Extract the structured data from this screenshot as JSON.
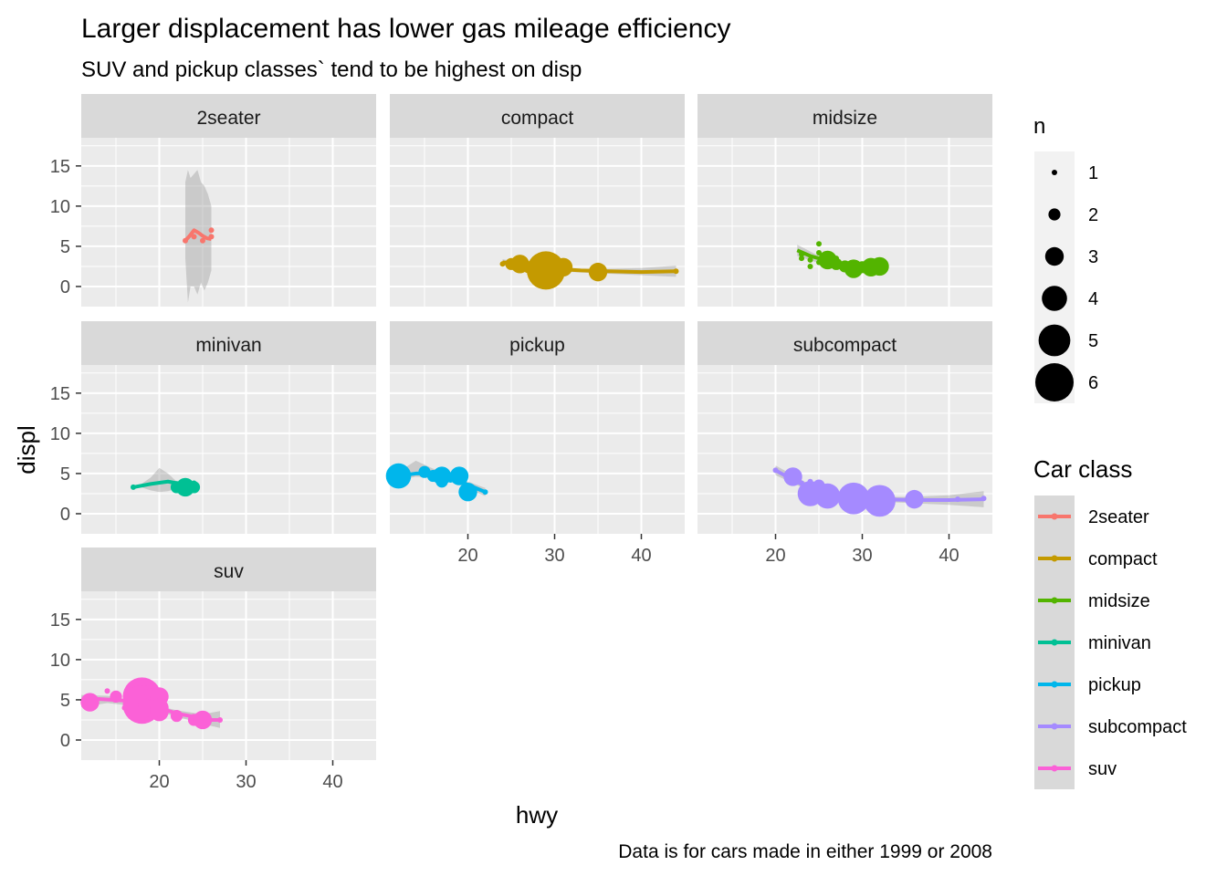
{
  "chart_data": {
    "type": "scatter",
    "title": "Larger displacement has lower gas mileage efficiency",
    "subtitle": "SUV and pickup classes` tend to be highest on disp",
    "caption": "Data is for cars made in either 1999 or 2008",
    "xlabel": "hwy",
    "ylabel": "displ",
    "xlim": [
      11,
      45
    ],
    "ylim": [
      -2.5,
      18.5
    ],
    "x_ticks": [
      20,
      30,
      40
    ],
    "y_ticks": [
      0,
      5,
      10,
      15
    ],
    "grid": true,
    "legend_position": "right",
    "size_legend": {
      "title": "n",
      "labels": [
        "1",
        "2",
        "3",
        "4",
        "5",
        "6"
      ]
    },
    "color_legend": {
      "title": "Car class"
    },
    "panels": [
      {
        "name": "2seater",
        "color": "#F8766D",
        "points": [
          [
            23,
            5.7,
            1
          ],
          [
            24,
            6.2,
            1
          ],
          [
            26,
            6.2,
            1
          ],
          [
            25,
            5.7,
            1
          ],
          [
            26,
            7.0,
            1
          ]
        ],
        "smooth": [
          [
            23,
            5.7
          ],
          [
            23.5,
            6.3
          ],
          [
            24,
            7.0
          ],
          [
            24.5,
            6.7
          ],
          [
            25,
            6.3
          ],
          [
            25.5,
            6.0
          ],
          [
            26,
            5.9
          ]
        ],
        "band": [
          [
            23,
            3.5,
            13.0
          ],
          [
            23.3,
            -2.0,
            14.5
          ],
          [
            23.6,
            0.0,
            13.5
          ],
          [
            24,
            0.0,
            14.0
          ],
          [
            24.4,
            -1.0,
            14.5
          ],
          [
            24.8,
            0.5,
            13.0
          ],
          [
            25.2,
            -0.5,
            12.5
          ],
          [
            25.6,
            0.5,
            11.5
          ],
          [
            26,
            2.0,
            10.0
          ]
        ]
      },
      {
        "name": "compact",
        "color": "#C49A00",
        "points": [
          [
            24,
            2.8,
            1
          ],
          [
            25,
            2.8,
            2
          ],
          [
            26,
            2.8,
            3
          ],
          [
            27,
            2.4,
            2
          ],
          [
            28,
            2.2,
            2
          ],
          [
            29,
            2.0,
            6
          ],
          [
            30,
            2.2,
            2
          ],
          [
            31,
            2.4,
            3
          ],
          [
            35,
            1.8,
            3
          ],
          [
            44,
            1.9,
            1
          ]
        ],
        "smooth": [
          [
            24,
            3.0
          ],
          [
            26,
            2.8
          ],
          [
            28,
            2.4
          ],
          [
            30,
            2.2
          ],
          [
            33,
            2.0
          ],
          [
            36,
            1.9
          ],
          [
            40,
            1.8
          ],
          [
            44,
            1.9
          ]
        ],
        "band": [
          [
            24,
            3.4,
            2.6
          ],
          [
            28,
            2.6,
            2.2
          ],
          [
            32,
            2.2,
            1.8
          ],
          [
            36,
            2.2,
            1.6
          ],
          [
            40,
            2.3,
            1.4
          ],
          [
            44,
            2.6,
            1.2
          ]
        ]
      },
      {
        "name": "midsize",
        "color": "#53B400",
        "points": [
          [
            23,
            3.5,
            1
          ],
          [
            24,
            3.3,
            1
          ],
          [
            25,
            3.0,
            1
          ],
          [
            25,
            5.3,
            1
          ],
          [
            26,
            3.3,
            3
          ],
          [
            27,
            2.8,
            2
          ],
          [
            27,
            3.5,
            1
          ],
          [
            28,
            2.5,
            2
          ],
          [
            29,
            2.2,
            3
          ],
          [
            29,
            3.0,
            1
          ],
          [
            30,
            2.4,
            2
          ],
          [
            31,
            2.4,
            3
          ],
          [
            32,
            2.5,
            3
          ],
          [
            24,
            2.5,
            1
          ],
          [
            26,
            4.0,
            1
          ],
          [
            25,
            4.2,
            1
          ],
          [
            23,
            4.0,
            1
          ]
        ],
        "smooth": [
          [
            22.5,
            4.5
          ],
          [
            24,
            3.8
          ],
          [
            26,
            3.2
          ],
          [
            28,
            2.7
          ],
          [
            30,
            2.4
          ],
          [
            32,
            2.4
          ]
        ],
        "band": [
          [
            22.5,
            5.2,
            3.8
          ],
          [
            25,
            3.8,
            2.9
          ],
          [
            28,
            3.0,
            2.4
          ],
          [
            30,
            2.7,
            2.1
          ],
          [
            32,
            2.9,
            1.9
          ]
        ]
      },
      {
        "name": "minivan",
        "color": "#00C094",
        "points": [
          [
            17,
            3.3,
            1
          ],
          [
            22,
            3.3,
            2
          ],
          [
            23,
            3.3,
            3
          ],
          [
            24,
            3.3,
            2
          ],
          [
            23,
            3.8,
            1
          ],
          [
            24,
            3.0,
            1
          ],
          [
            24,
            3.8,
            1
          ]
        ],
        "smooth": [
          [
            17,
            3.3
          ],
          [
            19,
            3.7
          ],
          [
            21,
            4.0
          ],
          [
            23,
            3.6
          ],
          [
            24,
            3.3
          ]
        ],
        "band": [
          [
            17,
            3.0,
            3.6
          ],
          [
            19,
            4.5,
            2.9
          ],
          [
            20,
            5.7,
            2.7
          ],
          [
            21,
            5.0,
            2.8
          ],
          [
            22,
            4.0,
            3.1
          ],
          [
            24,
            3.8,
            2.8
          ]
        ]
      },
      {
        "name": "pickup",
        "color": "#00B6EB",
        "points": [
          [
            12,
            4.7,
            4
          ],
          [
            15,
            5.2,
            2
          ],
          [
            16,
            4.7,
            2
          ],
          [
            17,
            4.7,
            3
          ],
          [
            17,
            4.0,
            2
          ],
          [
            18,
            4.2,
            1
          ],
          [
            19,
            4.7,
            3
          ],
          [
            19,
            3.9,
            1
          ],
          [
            20,
            2.7,
            3
          ],
          [
            22,
            2.7,
            1
          ]
        ],
        "smooth": [
          [
            12,
            4.7
          ],
          [
            14,
            5.0
          ],
          [
            16,
            5.0
          ],
          [
            18,
            4.6
          ],
          [
            20,
            3.6
          ],
          [
            22,
            2.7
          ]
        ],
        "band": [
          [
            12,
            5.2,
            4.2
          ],
          [
            14,
            6.6,
            4.6
          ],
          [
            16,
            5.6,
            4.5
          ],
          [
            18,
            5.0,
            4.2
          ],
          [
            20,
            4.0,
            3.1
          ],
          [
            22,
            3.2,
            2.2
          ]
        ]
      },
      {
        "name": "subcompact",
        "color": "#A58AFF",
        "points": [
          [
            20,
            5.4,
            1
          ],
          [
            22,
            4.6,
            3
          ],
          [
            23,
            3.8,
            1
          ],
          [
            24,
            2.5,
            4
          ],
          [
            25,
            3.5,
            2
          ],
          [
            26,
            2.2,
            4
          ],
          [
            29,
            1.9,
            5
          ],
          [
            32,
            1.6,
            5
          ],
          [
            36,
            1.8,
            3
          ],
          [
            41,
            1.8,
            1
          ],
          [
            44,
            1.9,
            1
          ],
          [
            25,
            3.8,
            1
          ],
          [
            24,
            4.0,
            1
          ]
        ],
        "smooth": [
          [
            20,
            5.4
          ],
          [
            22,
            4.2
          ],
          [
            24,
            3.2
          ],
          [
            26,
            2.5
          ],
          [
            29,
            2.0
          ],
          [
            32,
            1.8
          ],
          [
            36,
            1.7
          ],
          [
            40,
            1.7
          ],
          [
            44,
            1.8
          ]
        ],
        "band": [
          [
            20,
            6.0,
            4.8
          ],
          [
            24,
            3.6,
            2.8
          ],
          [
            28,
            2.4,
            1.8
          ],
          [
            32,
            2.1,
            1.5
          ],
          [
            36,
            2.1,
            1.3
          ],
          [
            40,
            2.3,
            1.1
          ],
          [
            44,
            2.8,
            0.8
          ]
        ]
      },
      {
        "name": "suv",
        "color": "#FB61D7",
        "points": [
          [
            12,
            4.7,
            3
          ],
          [
            14,
            6.1,
            1
          ],
          [
            15,
            5.4,
            2
          ],
          [
            17,
            4.7,
            3
          ],
          [
            17,
            5.3,
            2
          ],
          [
            18,
            5.4,
            6
          ],
          [
            18,
            4.4,
            6
          ],
          [
            19,
            4.4,
            4
          ],
          [
            19,
            5.7,
            2
          ],
          [
            20,
            5.4,
            3
          ],
          [
            20,
            3.5,
            3
          ],
          [
            20,
            4.0,
            3
          ],
          [
            22,
            3.0,
            2
          ],
          [
            24,
            2.5,
            2
          ],
          [
            25,
            2.5,
            3
          ],
          [
            27,
            2.5,
            1
          ],
          [
            16,
            4.0,
            1
          ]
        ],
        "smooth": [
          [
            11,
            4.9
          ],
          [
            13,
            5.1
          ],
          [
            16,
            4.9
          ],
          [
            18,
            4.4
          ],
          [
            20,
            4.0
          ],
          [
            22,
            3.3
          ],
          [
            24,
            2.9
          ],
          [
            26,
            2.5
          ],
          [
            27,
            2.5
          ]
        ],
        "band": [
          [
            11,
            5.6,
            4.1
          ],
          [
            14,
            5.5,
            4.6
          ],
          [
            18,
            4.7,
            4.1
          ],
          [
            22,
            3.7,
            2.9
          ],
          [
            25,
            3.2,
            2.0
          ],
          [
            27,
            3.6,
            1.5
          ]
        ]
      }
    ]
  }
}
